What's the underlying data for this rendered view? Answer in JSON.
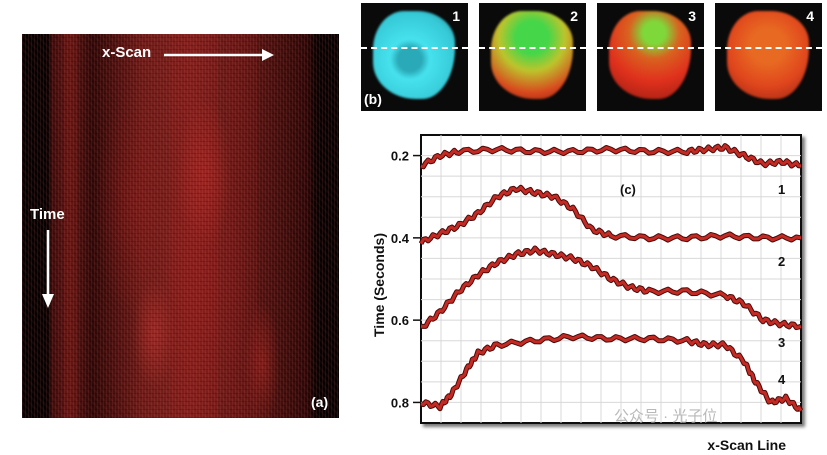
{
  "panel_a": {
    "label": "(a)",
    "scan_label": "x-Scan",
    "time_label": "Time",
    "colors": {
      "signal": "#a3231f",
      "background": "#1a0505"
    }
  },
  "panel_b": {
    "label": "(b)",
    "frames": [
      {
        "number": "1",
        "colors": [
          "#40e8f0",
          "#2fb8c6"
        ]
      },
      {
        "number": "2",
        "colors": [
          "#3fd34a",
          "#c9b42a",
          "#d33a1e"
        ]
      },
      {
        "number": "3",
        "colors": [
          "#6fd23a",
          "#e13620",
          "#c52a1a"
        ]
      },
      {
        "number": "4",
        "colors": [
          "#d9531f",
          "#e4481f"
        ]
      }
    ]
  },
  "chart_data": {
    "type": "line",
    "panel_label": "(c)",
    "xlabel": "x-Scan Line",
    "ylabel": "Time (Seconds)",
    "yticks": [
      "0.2",
      "0.4",
      "0.6",
      "0.8"
    ],
    "ylim": [
      0.15,
      0.85
    ],
    "xlim": [
      0,
      1
    ],
    "grid": true,
    "series_color": "#c42a24",
    "series": [
      {
        "name": "1",
        "x": [
          0,
          0.05,
          0.1,
          0.2,
          0.3,
          0.4,
          0.5,
          0.6,
          0.7,
          0.75,
          0.8,
          0.85,
          0.9,
          0.95,
          1.0
        ],
        "y": [
          0.225,
          0.2,
          0.19,
          0.185,
          0.19,
          0.19,
          0.185,
          0.19,
          0.19,
          0.185,
          0.18,
          0.2,
          0.22,
          0.215,
          0.225
        ]
      },
      {
        "name": "2",
        "x": [
          0,
          0.05,
          0.1,
          0.15,
          0.2,
          0.25,
          0.3,
          0.35,
          0.4,
          0.45,
          0.5,
          0.6,
          0.7,
          0.8,
          0.9,
          1.0
        ],
        "y": [
          0.41,
          0.39,
          0.37,
          0.34,
          0.3,
          0.28,
          0.29,
          0.3,
          0.33,
          0.38,
          0.395,
          0.4,
          0.4,
          0.395,
          0.4,
          0.4
        ]
      },
      {
        "name": "3",
        "x": [
          0,
          0.05,
          0.1,
          0.15,
          0.2,
          0.25,
          0.3,
          0.35,
          0.4,
          0.45,
          0.5,
          0.55,
          0.6,
          0.7,
          0.8,
          0.85,
          0.9,
          0.95,
          1.0
        ],
        "y": [
          0.62,
          0.58,
          0.53,
          0.49,
          0.46,
          0.44,
          0.43,
          0.44,
          0.45,
          0.47,
          0.5,
          0.52,
          0.53,
          0.53,
          0.54,
          0.56,
          0.6,
          0.61,
          0.615
        ]
      },
      {
        "name": "4",
        "x": [
          0,
          0.05,
          0.08,
          0.12,
          0.15,
          0.2,
          0.3,
          0.4,
          0.5,
          0.6,
          0.7,
          0.75,
          0.8,
          0.85,
          0.88,
          0.92,
          0.96,
          1.0
        ],
        "y": [
          0.8,
          0.81,
          0.78,
          0.72,
          0.68,
          0.66,
          0.65,
          0.64,
          0.645,
          0.645,
          0.65,
          0.66,
          0.66,
          0.7,
          0.75,
          0.8,
          0.79,
          0.82
        ]
      }
    ]
  },
  "watermark": "公众号 · 光子位"
}
